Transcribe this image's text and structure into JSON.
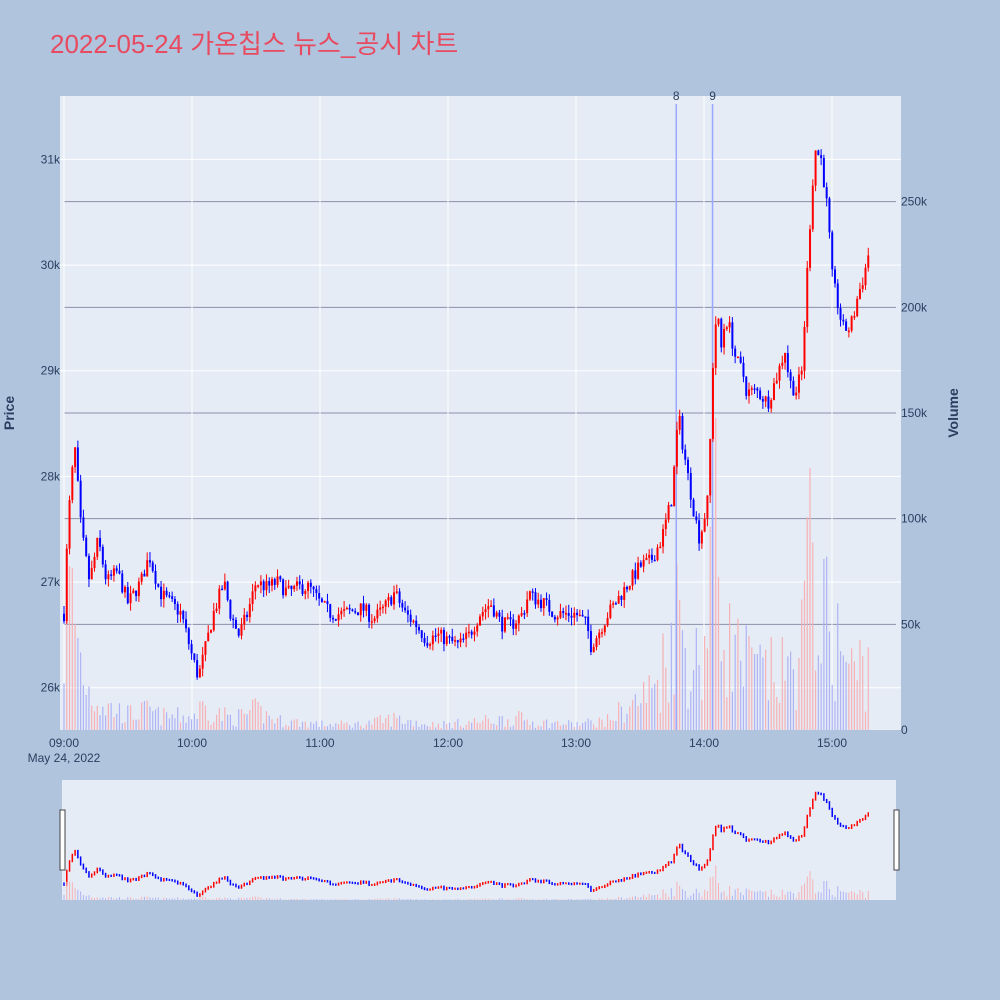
{
  "title": "2022-05-24 가온칩스 뉴스_공시 차트",
  "colors": {
    "up": "#ff0000",
    "down": "#0000ff",
    "background": "#b0c4de",
    "plot": "#e5ecf6",
    "title": "#e84a5f"
  },
  "chart_data": {
    "type": "candlestick",
    "date_label": "May 24, 2022",
    "y_label": "Price",
    "y2_label": "Volume",
    "y_ticks": [
      26000,
      27000,
      28000,
      29000,
      30000,
      31000
    ],
    "y_tick_labels": [
      "26k",
      "27k",
      "28k",
      "29k",
      "30k",
      "31k"
    ],
    "y_range": [
      25600,
      31600
    ],
    "y2_ticks": [
      0,
      50000,
      100000,
      150000,
      200000,
      250000
    ],
    "y2_tick_labels": [
      "0",
      "50k",
      "100k",
      "150k",
      "200k",
      "250k"
    ],
    "y2_range": [
      0,
      300000
    ],
    "x_ticks": [
      "09:00",
      "10:00",
      "11:00",
      "12:00",
      "13:00",
      "14:00",
      "15:00"
    ],
    "x_range": [
      "09:00",
      "15:30"
    ],
    "news_markers": [
      {
        "label": "8",
        "time": "13:47"
      },
      {
        "label": "9",
        "time": "14:04"
      }
    ],
    "price_path": [
      [
        "09:00",
        26700
      ],
      [
        "09:02",
        27600
      ],
      [
        "09:05",
        28300
      ],
      [
        "09:08",
        27500
      ],
      [
        "09:12",
        27000
      ],
      [
        "09:16",
        27400
      ],
      [
        "09:20",
        27000
      ],
      [
        "09:25",
        27100
      ],
      [
        "09:30",
        26800
      ],
      [
        "09:36",
        27000
      ],
      [
        "09:40",
        27250
      ],
      [
        "09:45",
        26900
      ],
      [
        "09:50",
        26800
      ],
      [
        "09:55",
        26700
      ],
      [
        "10:00",
        26300
      ],
      [
        "10:03",
        26100
      ],
      [
        "10:06",
        26350
      ],
      [
        "10:10",
        26700
      ],
      [
        "10:15",
        27000
      ],
      [
        "10:18",
        26700
      ],
      [
        "10:22",
        26500
      ],
      [
        "10:26",
        26700
      ],
      [
        "10:30",
        27000
      ],
      [
        "10:35",
        26950
      ],
      [
        "10:40",
        27000
      ],
      [
        "10:45",
        26900
      ],
      [
        "10:50",
        26950
      ],
      [
        "10:55",
        26950
      ],
      [
        "11:00",
        26800
      ],
      [
        "11:05",
        26700
      ],
      [
        "11:10",
        26700
      ],
      [
        "11:20",
        26750
      ],
      [
        "11:25",
        26650
      ],
      [
        "11:30",
        26750
      ],
      [
        "11:35",
        26900
      ],
      [
        "11:40",
        26700
      ],
      [
        "11:45",
        26600
      ],
      [
        "11:50",
        26450
      ],
      [
        "11:55",
        26500
      ],
      [
        "12:00",
        26450
      ],
      [
        "12:05",
        26400
      ],
      [
        "12:10",
        26500
      ],
      [
        "12:15",
        26700
      ],
      [
        "12:20",
        26800
      ],
      [
        "12:25",
        26600
      ],
      [
        "12:30",
        26600
      ],
      [
        "12:35",
        26700
      ],
      [
        "12:38",
        26900
      ],
      [
        "12:40",
        26850
      ],
      [
        "12:45",
        26800
      ],
      [
        "12:50",
        26700
      ],
      [
        "12:55",
        26700
      ],
      [
        "13:00",
        26700
      ],
      [
        "13:05",
        26600
      ],
      [
        "13:07",
        26400
      ],
      [
        "13:10",
        26500
      ],
      [
        "13:15",
        26700
      ],
      [
        "13:20",
        26850
      ],
      [
        "13:25",
        27000
      ],
      [
        "13:30",
        27150
      ],
      [
        "13:35",
        27200
      ],
      [
        "13:40",
        27400
      ],
      [
        "13:45",
        27800
      ],
      [
        "13:48",
        28600
      ],
      [
        "13:50",
        28300
      ],
      [
        "13:55",
        27700
      ],
      [
        "13:58",
        27400
      ],
      [
        "14:00",
        27600
      ],
      [
        "14:02",
        27800
      ],
      [
        "14:04",
        29000
      ],
      [
        "14:06",
        29600
      ],
      [
        "14:08",
        29200
      ],
      [
        "14:10",
        29500
      ],
      [
        "14:12",
        29400
      ],
      [
        "14:15",
        29100
      ],
      [
        "14:18",
        29000
      ],
      [
        "14:20",
        28800
      ],
      [
        "14:25",
        28800
      ],
      [
        "14:30",
        28700
      ],
      [
        "14:35",
        29000
      ],
      [
        "14:38",
        29200
      ],
      [
        "14:40",
        28900
      ],
      [
        "14:43",
        28800
      ],
      [
        "14:46",
        29000
      ],
      [
        "14:48",
        29800
      ],
      [
        "14:50",
        30500
      ],
      [
        "14:52",
        31100
      ],
      [
        "14:55",
        31000
      ],
      [
        "14:58",
        30500
      ],
      [
        "15:00",
        29900
      ],
      [
        "15:02",
        29700
      ],
      [
        "15:05",
        29400
      ],
      [
        "15:08",
        29400
      ],
      [
        "15:10",
        29500
      ],
      [
        "15:12",
        29700
      ],
      [
        "15:15",
        29900
      ],
      [
        "15:18",
        30200
      ]
    ],
    "volume_path": [
      [
        "09:00",
        42000
      ],
      [
        "09:02",
        75000
      ],
      [
        "09:05",
        60000
      ],
      [
        "09:08",
        35000
      ],
      [
        "09:12",
        20000
      ],
      [
        "09:20",
        12000
      ],
      [
        "09:30",
        8000
      ],
      [
        "09:40",
        10000
      ],
      [
        "09:45",
        7000
      ],
      [
        "10:00",
        7000
      ],
      [
        "10:05",
        12000
      ],
      [
        "10:10",
        9000
      ],
      [
        "10:20",
        6000
      ],
      [
        "10:30",
        10000
      ],
      [
        "10:40",
        5000
      ],
      [
        "11:00",
        3000
      ],
      [
        "11:20",
        3000
      ],
      [
        "11:35",
        6000
      ],
      [
        "11:50",
        3000
      ],
      [
        "12:00",
        3000
      ],
      [
        "12:20",
        5000
      ],
      [
        "12:35",
        6000
      ],
      [
        "12:40",
        4000
      ],
      [
        "13:00",
        3000
      ],
      [
        "13:15",
        5000
      ],
      [
        "13:20",
        9000
      ],
      [
        "13:25",
        12000
      ],
      [
        "13:30",
        16000
      ],
      [
        "13:35",
        20000
      ],
      [
        "13:40",
        30000
      ],
      [
        "13:45",
        52000
      ],
      [
        "13:48",
        62000
      ],
      [
        "13:52",
        38000
      ],
      [
        "13:55",
        34000
      ],
      [
        "14:00",
        40000
      ],
      [
        "14:04",
        110000
      ],
      [
        "14:06",
        95000
      ],
      [
        "14:08",
        58000
      ],
      [
        "14:12",
        45000
      ],
      [
        "14:18",
        35000
      ],
      [
        "14:25",
        30000
      ],
      [
        "14:35",
        28000
      ],
      [
        "14:40",
        30000
      ],
      [
        "14:45",
        38000
      ],
      [
        "14:48",
        70000
      ],
      [
        "14:51",
        95000
      ],
      [
        "14:55",
        60000
      ],
      [
        "15:00",
        48000
      ],
      [
        "15:05",
        40000
      ],
      [
        "15:10",
        28000
      ],
      [
        "15:15",
        35000
      ],
      [
        "15:20",
        30000
      ]
    ]
  }
}
